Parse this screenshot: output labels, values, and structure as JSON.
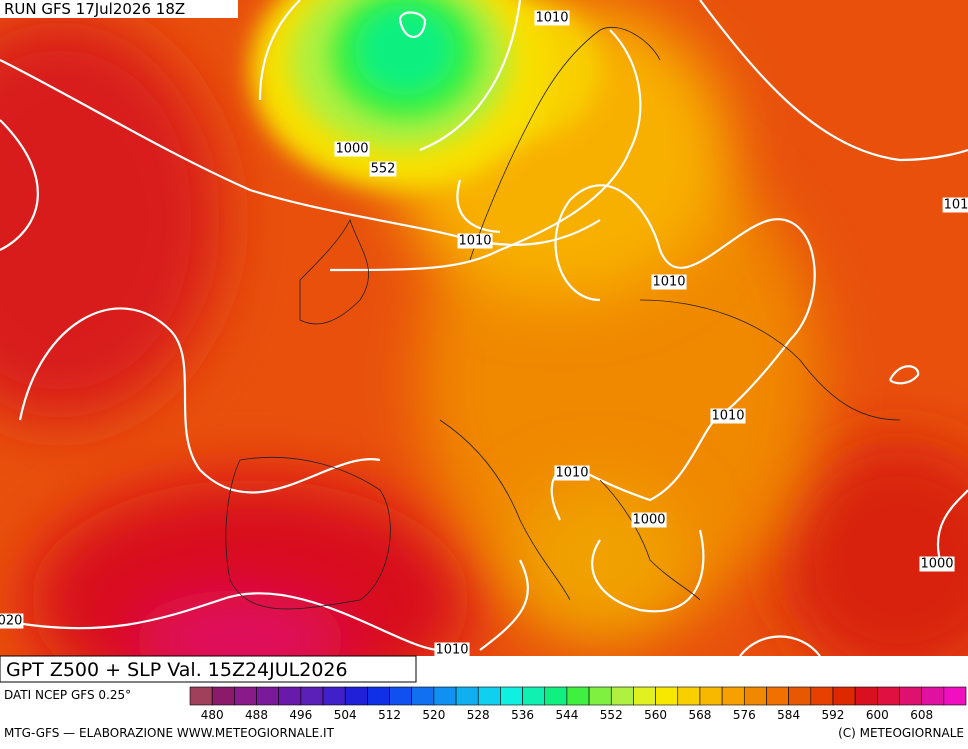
{
  "header": {
    "run": "RUN GFS 17Jul2026 18Z"
  },
  "map": {
    "contour_labels": [
      "1010",
      "1000",
      "552",
      "1010",
      "1010",
      "101",
      "1010",
      "1010",
      "1000",
      "1000",
      "020",
      "1010"
    ]
  },
  "footer": {
    "title": "GPT Z500 + SLP Val. 15Z24JUL2026",
    "source": "DATI NCEP GFS 0.25°",
    "credit": "MTG-GFS — ELABORAZIONE WWW.METEOGIORNALE.IT",
    "copyright": "(C) METEOGIORNALE"
  },
  "colorbar": {
    "labels": [
      480,
      488,
      496,
      504,
      512,
      520,
      528,
      536,
      544,
      552,
      560,
      568,
      576,
      584,
      592,
      600,
      608
    ],
    "colors": [
      "#a0405a",
      "#8b1a6b",
      "#8a1a8a",
      "#7a1a9a",
      "#6a1aaa",
      "#5a20b8",
      "#4020c8",
      "#2020d8",
      "#1030e8",
      "#1050f0",
      "#1070f0",
      "#1090f0",
      "#10b0f0",
      "#10d0f0",
      "#10f0e0",
      "#10f0b0",
      "#10f080",
      "#40f040",
      "#80f040",
      "#b0f040",
      "#e0f020",
      "#f8e800",
      "#f8d000",
      "#f8b800",
      "#f8a000",
      "#f08800",
      "#f07000",
      "#e85800",
      "#e84000",
      "#e02800",
      "#d81020",
      "#e01040",
      "#e01070",
      "#e010a0",
      "#f010c0"
    ]
  }
}
